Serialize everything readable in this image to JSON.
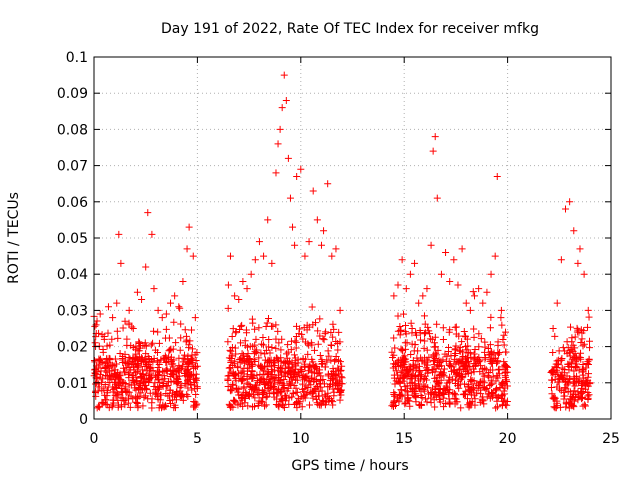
{
  "chart_data": {
    "type": "scatter",
    "title": "Day 191 of 2022, Rate Of TEC Index for receiver mfkg",
    "xlabel": "GPS time / hours",
    "ylabel": "ROTI / TECUs",
    "xlim": [
      0,
      25
    ],
    "ylim": [
      0,
      0.1
    ],
    "x_ticks": [
      "0",
      "5",
      "10",
      "15",
      "20",
      "25"
    ],
    "y_ticks": [
      "0",
      "0.01",
      "0.02",
      "0.03",
      "0.04",
      "0.05",
      "0.06",
      "0.07",
      "0.08",
      "0.09",
      "0.1"
    ],
    "grid": true,
    "marker": "+",
    "color": "#ff0000",
    "series": [
      {
        "x": [
          0.1,
          0.3,
          0.5,
          0.7,
          0.9,
          1.1,
          1.2,
          1.3,
          1.5,
          1.7,
          1.9,
          2.1,
          2.3,
          2.5,
          2.6,
          2.8,
          2.9,
          3.1,
          3.3,
          3.5,
          3.7,
          3.9,
          4.1,
          4.3,
          4.5,
          4.6,
          4.8,
          4.9,
          6.5,
          6.6,
          6.8,
          7.0,
          7.2,
          7.4,
          7.6,
          7.8,
          8.0,
          8.2,
          8.4,
          8.6,
          8.8,
          8.9,
          9.0,
          9.1,
          9.2,
          9.3,
          9.4,
          9.5,
          9.6,
          9.7,
          9.8,
          10.0,
          10.2,
          10.4,
          10.6,
          10.8,
          11.0,
          11.1,
          11.3,
          11.5,
          11.7,
          11.9,
          14.5,
          14.7,
          14.9,
          15.1,
          15.3,
          15.5,
          15.7,
          15.9,
          16.1,
          16.3,
          16.4,
          16.5,
          16.6,
          16.8,
          17.0,
          17.2,
          17.4,
          17.6,
          17.8,
          18.0,
          18.2,
          18.4,
          18.6,
          18.8,
          19.0,
          19.2,
          19.4,
          19.5,
          19.7,
          19.9,
          22.2,
          22.4,
          22.6,
          22.8,
          23.0,
          23.2,
          23.4,
          23.5,
          23.7,
          23.9
        ],
        "y": [
          0.026,
          0.029,
          0.022,
          0.031,
          0.028,
          0.032,
          0.051,
          0.043,
          0.027,
          0.03,
          0.025,
          0.035,
          0.033,
          0.042,
          0.057,
          0.051,
          0.036,
          0.03,
          0.028,
          0.029,
          0.032,
          0.034,
          0.031,
          0.038,
          0.047,
          0.053,
          0.045,
          0.028,
          0.037,
          0.045,
          0.034,
          0.033,
          0.038,
          0.036,
          0.04,
          0.044,
          0.049,
          0.045,
          0.055,
          0.043,
          0.068,
          0.076,
          0.08,
          0.086,
          0.095,
          0.088,
          0.072,
          0.061,
          0.053,
          0.048,
          0.067,
          0.069,
          0.045,
          0.049,
          0.063,
          0.055,
          0.048,
          0.052,
          0.065,
          0.045,
          0.047,
          0.03,
          0.034,
          0.037,
          0.044,
          0.036,
          0.04,
          0.043,
          0.032,
          0.034,
          0.036,
          0.048,
          0.074,
          0.078,
          0.061,
          0.04,
          0.046,
          0.038,
          0.044,
          0.037,
          0.047,
          0.032,
          0.03,
          0.034,
          0.036,
          0.032,
          0.035,
          0.04,
          0.045,
          0.067,
          0.03,
          0.024,
          0.025,
          0.032,
          0.044,
          0.058,
          0.06,
          0.052,
          0.043,
          0.047,
          0.04,
          0.03
        ]
      }
    ]
  }
}
